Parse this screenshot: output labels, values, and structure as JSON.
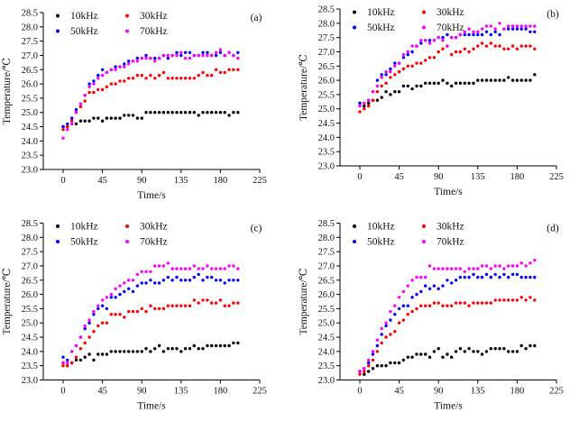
{
  "figure": {
    "background": "#ffffff",
    "axis_color": "#000000",
    "text_color": "#111111",
    "xlabel": "Time/s",
    "ylabel": "Temperature/℃",
    "panel_labels": [
      "(a)",
      "(b)",
      "(c)",
      "(d)"
    ]
  },
  "chart_data": [
    {
      "type": "scatter",
      "panel_label": "(a)",
      "xlabel": "Time/s",
      "ylabel": "Temperature/℃",
      "xlim": [
        -23,
        225
      ],
      "ylim": [
        23.0,
        28.5
      ],
      "x_ticks": [
        0,
        45,
        90,
        135,
        180,
        225
      ],
      "y_ticks": [
        23.0,
        23.5,
        24.0,
        24.5,
        25.0,
        25.5,
        26.0,
        26.5,
        27.0,
        27.5,
        28.0,
        28.5
      ],
      "grid": false,
      "legend_position": "top-left-inside",
      "x_start": 0,
      "x_step": 5,
      "offset": [
        0,
        0
      ],
      "series": [
        {
          "name": "10kHz",
          "color": "#000000",
          "values": [
            24.5,
            24.5,
            24.6,
            24.6,
            24.7,
            24.7,
            24.7,
            24.8,
            24.8,
            24.7,
            24.8,
            24.8,
            24.8,
            24.8,
            24.9,
            24.9,
            24.9,
            24.8,
            24.8,
            25.0,
            25.0,
            25.0,
            25.0,
            25.0,
            25.0,
            25.0,
            25.0,
            25.0,
            25.0,
            25.0,
            25.0,
            24.9,
            25.0,
            25.0,
            25.0,
            25.0,
            25.0,
            25.0,
            24.9,
            25.0,
            25.0
          ]
        },
        {
          "name": "30kHz",
          "color": "#ff0000",
          "values": [
            24.4,
            24.5,
            24.7,
            25.0,
            25.2,
            25.4,
            25.7,
            25.7,
            25.8,
            25.8,
            25.9,
            26.0,
            26.0,
            26.1,
            26.1,
            26.2,
            26.2,
            26.3,
            26.3,
            26.2,
            26.3,
            26.2,
            26.3,
            26.4,
            26.2,
            26.2,
            26.2,
            26.2,
            26.2,
            26.2,
            26.2,
            26.3,
            26.4,
            26.3,
            26.3,
            26.5,
            26.4,
            26.4,
            26.5,
            26.5,
            26.5
          ]
        },
        {
          "name": "50kHz",
          "color": "#0000ff",
          "values": [
            24.5,
            24.6,
            24.8,
            25.1,
            25.3,
            25.6,
            26.0,
            26.1,
            26.3,
            26.5,
            26.4,
            26.5,
            26.6,
            26.6,
            26.7,
            26.8,
            26.8,
            26.9,
            26.9,
            27.0,
            26.9,
            26.9,
            26.9,
            27.0,
            26.9,
            27.0,
            27.1,
            27.0,
            27.1,
            27.1,
            27.0,
            27.0,
            27.1,
            27.1,
            27.0,
            27.0,
            27.1,
            27.0,
            27.1,
            27.0,
            27.1
          ]
        },
        {
          "name": "70kHz",
          "color": "#ff00ff",
          "values": [
            24.1,
            24.4,
            24.6,
            25.0,
            25.3,
            25.6,
            25.9,
            26.0,
            26.2,
            26.3,
            26.4,
            26.5,
            26.5,
            26.6,
            26.6,
            26.7,
            26.8,
            26.8,
            26.9,
            26.9,
            26.9,
            26.8,
            26.9,
            27.0,
            27.0,
            27.0,
            27.0,
            27.1,
            26.9,
            26.9,
            27.0,
            27.0,
            27.0,
            27.0,
            27.0,
            27.1,
            27.2,
            27.0,
            27.1,
            27.0,
            26.9
          ]
        }
      ]
    },
    {
      "type": "scatter",
      "panel_label": "(b)",
      "xlabel": "Time/s",
      "ylabel": "Temperature/℃",
      "xlim": [
        -23,
        225
      ],
      "ylim": [
        23.0,
        28.5
      ],
      "x_ticks": [
        0,
        45,
        90,
        135,
        180,
        225
      ],
      "y_ticks": [
        23.0,
        23.5,
        24.0,
        24.5,
        25.0,
        25.5,
        26.0,
        26.5,
        27.0,
        27.5,
        28.0,
        28.5
      ],
      "grid": false,
      "legend_position": "top-left-inside",
      "x_start": 0,
      "x_step": 5,
      "offset": [
        8,
        -4
      ],
      "series": [
        {
          "name": "10kHz",
          "color": "#000000",
          "values": [
            25.2,
            25.1,
            25.2,
            25.3,
            25.3,
            25.4,
            25.6,
            25.5,
            25.6,
            25.6,
            25.8,
            25.8,
            25.7,
            25.8,
            25.8,
            25.9,
            25.9,
            25.9,
            25.9,
            26.0,
            25.9,
            25.8,
            25.9,
            25.9,
            25.9,
            25.9,
            25.9,
            26.0,
            26.0,
            26.0,
            26.0,
            26.0,
            26.0,
            26.0,
            26.1,
            26.0,
            26.0,
            26.0,
            26.0,
            26.0,
            26.2
          ]
        },
        {
          "name": "30kHz",
          "color": "#ff0000",
          "values": [
            24.9,
            25.0,
            25.1,
            25.3,
            25.6,
            25.8,
            25.9,
            26.1,
            26.2,
            26.3,
            26.4,
            26.5,
            26.5,
            26.6,
            26.6,
            26.7,
            26.8,
            26.8,
            27.0,
            27.1,
            27.2,
            26.9,
            27.0,
            27.0,
            27.1,
            27.0,
            27.1,
            27.2,
            27.3,
            27.2,
            27.3,
            27.2,
            27.2,
            27.1,
            27.1,
            27.2,
            27.1,
            27.2,
            27.2,
            27.2,
            27.1
          ]
        },
        {
          "name": "50kHz",
          "color": "#0000ff",
          "values": [
            25.2,
            25.2,
            25.3,
            25.6,
            26.0,
            26.2,
            26.2,
            26.4,
            26.6,
            26.6,
            26.8,
            26.9,
            27.0,
            27.2,
            27.3,
            27.4,
            27.4,
            27.4,
            27.5,
            27.5,
            27.6,
            27.5,
            27.5,
            27.6,
            27.6,
            27.6,
            27.6,
            27.6,
            27.6,
            27.7,
            27.6,
            27.7,
            27.6,
            27.8,
            27.8,
            27.8,
            27.8,
            27.8,
            27.8,
            27.7,
            27.7
          ]
        },
        {
          "name": "70kHz",
          "color": "#ff00ff",
          "values": [
            25.1,
            25.2,
            25.3,
            25.6,
            25.8,
            26.1,
            26.3,
            26.3,
            26.5,
            26.6,
            26.9,
            27.0,
            27.2,
            27.2,
            27.4,
            27.4,
            27.3,
            27.4,
            27.5,
            27.4,
            27.2,
            27.5,
            27.5,
            27.6,
            27.7,
            27.8,
            27.7,
            27.7,
            27.8,
            27.9,
            27.9,
            27.8,
            28.0,
            27.8,
            27.9,
            27.9,
            27.9,
            27.9,
            27.9,
            27.9,
            27.9
          ]
        }
      ]
    },
    {
      "type": "scatter",
      "panel_label": "(c)",
      "xlabel": "Time/s",
      "ylabel": "Temperature/℃",
      "xlim": [
        -23,
        225
      ],
      "ylim": [
        23.0,
        28.5
      ],
      "x_ticks": [
        0,
        45,
        90,
        135,
        180,
        225
      ],
      "y_ticks": [
        23.0,
        23.5,
        24.0,
        24.5,
        25.0,
        25.5,
        26.0,
        26.5,
        27.0,
        27.5,
        28.0,
        28.5
      ],
      "grid": false,
      "legend_position": "top-left-inside",
      "x_start": 0,
      "x_step": 5,
      "offset": [
        0,
        0
      ],
      "series": [
        {
          "name": "10kHz",
          "color": "#000000",
          "values": [
            23.6,
            23.5,
            23.6,
            23.7,
            23.7,
            23.8,
            23.9,
            23.7,
            23.9,
            23.9,
            23.9,
            24.0,
            24.0,
            24.0,
            24.0,
            24.0,
            24.0,
            24.0,
            24.0,
            24.1,
            24.0,
            24.1,
            24.2,
            24.0,
            24.1,
            24.1,
            24.1,
            24.0,
            24.1,
            24.1,
            24.2,
            24.1,
            24.1,
            24.2,
            24.2,
            24.2,
            24.2,
            24.2,
            24.2,
            24.3,
            24.3
          ]
        },
        {
          "name": "30kHz",
          "color": "#ff0000",
          "values": [
            23.5,
            23.5,
            23.6,
            23.8,
            24.1,
            24.3,
            24.5,
            24.7,
            24.9,
            25.0,
            25.0,
            25.3,
            25.3,
            25.3,
            25.2,
            25.4,
            25.4,
            25.4,
            25.5,
            25.4,
            25.6,
            25.5,
            25.5,
            25.5,
            25.6,
            25.6,
            25.6,
            25.6,
            25.6,
            25.6,
            25.8,
            25.7,
            25.8,
            25.8,
            25.7,
            25.7,
            25.8,
            25.6,
            25.6,
            25.7,
            25.7
          ]
        },
        {
          "name": "50kHz",
          "color": "#0000ff",
          "values": [
            23.8,
            23.7,
            24.0,
            24.2,
            24.5,
            24.8,
            25.0,
            25.3,
            25.5,
            25.6,
            25.5,
            25.9,
            25.9,
            26.0,
            26.1,
            26.2,
            26.1,
            26.3,
            26.4,
            26.4,
            26.5,
            26.4,
            26.4,
            26.5,
            26.6,
            26.5,
            26.6,
            26.5,
            26.5,
            26.5,
            26.6,
            26.7,
            26.5,
            26.6,
            26.6,
            26.5,
            26.5,
            26.4,
            26.5,
            26.5,
            26.5
          ]
        },
        {
          "name": "70kHz",
          "color": "#ff00ff",
          "values": [
            23.6,
            23.6,
            24.0,
            24.2,
            24.5,
            24.9,
            25.1,
            25.4,
            25.6,
            25.8,
            25.9,
            26.0,
            26.2,
            26.3,
            26.4,
            26.5,
            26.5,
            26.7,
            26.8,
            26.8,
            26.8,
            27.0,
            27.0,
            27.0,
            27.1,
            26.9,
            26.9,
            26.9,
            26.9,
            26.9,
            27.0,
            26.9,
            26.9,
            27.0,
            26.9,
            26.9,
            26.9,
            26.9,
            27.0,
            27.0,
            26.9
          ]
        }
      ]
    },
    {
      "type": "scatter",
      "panel_label": "(d)",
      "xlabel": "Time/s",
      "ylabel": "Temperature/℃",
      "xlim": [
        -23,
        225
      ],
      "ylim": [
        23.0,
        28.5
      ],
      "x_ticks": [
        0,
        45,
        90,
        135,
        180,
        225
      ],
      "y_ticks": [
        23.0,
        23.5,
        24.0,
        24.5,
        25.0,
        25.5,
        26.0,
        26.5,
        27.0,
        27.5,
        28.0,
        28.5
      ],
      "grid": false,
      "legend_position": "top-left-inside",
      "x_start": 0,
      "x_step": 5,
      "offset": [
        8,
        0
      ],
      "series": [
        {
          "name": "10kHz",
          "color": "#000000",
          "values": [
            23.3,
            23.2,
            23.3,
            23.4,
            23.5,
            23.5,
            23.5,
            23.6,
            23.6,
            23.6,
            23.7,
            23.8,
            23.8,
            23.9,
            23.9,
            23.9,
            23.8,
            24.0,
            24.1,
            23.8,
            23.9,
            23.8,
            24.0,
            24.1,
            24.0,
            24.1,
            24.0,
            24.0,
            23.9,
            24.0,
            24.1,
            24.1,
            24.1,
            24.1,
            24.0,
            24.0,
            24.0,
            24.2,
            24.1,
            24.2,
            24.2
          ]
        },
        {
          "name": "30kHz",
          "color": "#ff0000",
          "values": [
            23.2,
            23.3,
            23.5,
            23.7,
            24.0,
            24.3,
            24.5,
            24.6,
            24.7,
            25.0,
            25.1,
            25.3,
            25.4,
            25.5,
            25.6,
            25.6,
            25.6,
            25.7,
            25.7,
            25.6,
            25.6,
            25.6,
            25.7,
            25.7,
            25.7,
            25.6,
            25.7,
            25.7,
            25.7,
            25.7,
            25.7,
            25.8,
            25.8,
            25.8,
            25.8,
            25.8,
            25.8,
            25.9,
            25.8,
            25.9,
            25.8
          ]
        },
        {
          "name": "50kHz",
          "color": "#0000ff",
          "values": [
            23.3,
            23.4,
            23.6,
            23.9,
            24.2,
            24.6,
            24.9,
            25.1,
            25.3,
            25.5,
            25.6,
            25.6,
            25.9,
            26.0,
            26.1,
            26.3,
            26.2,
            26.3,
            26.2,
            26.3,
            26.5,
            26.4,
            26.5,
            26.6,
            26.6,
            26.6,
            26.7,
            26.6,
            26.6,
            26.7,
            26.6,
            26.7,
            26.6,
            26.7,
            26.6,
            26.7,
            26.7,
            26.6,
            26.6,
            26.6,
            26.6
          ]
        },
        {
          "name": "70kHz",
          "color": "#ff00ff",
          "values": [
            23.3,
            23.4,
            23.7,
            24.0,
            24.4,
            24.8,
            25.0,
            25.4,
            25.6,
            25.9,
            26.1,
            26.3,
            26.5,
            26.6,
            26.6,
            26.6,
            27.0,
            26.9,
            26.9,
            26.9,
            26.9,
            26.9,
            26.9,
            26.9,
            26.8,
            26.9,
            26.9,
            26.9,
            27.0,
            27.0,
            26.9,
            27.0,
            27.0,
            26.9,
            27.0,
            27.0,
            27.0,
            27.1,
            27.0,
            27.1,
            27.2
          ]
        }
      ]
    }
  ]
}
